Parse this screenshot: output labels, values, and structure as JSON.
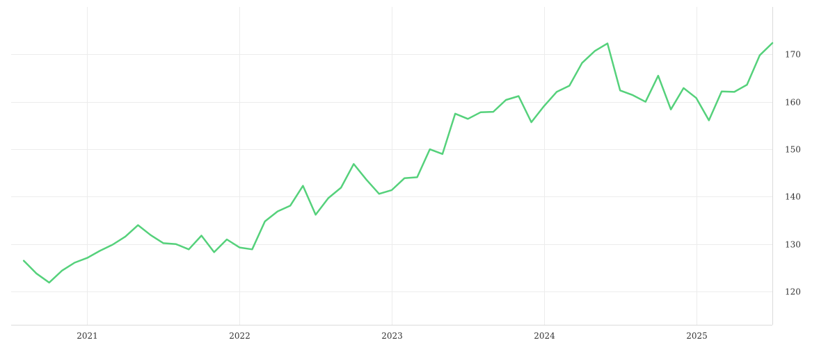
{
  "chart_data": {
    "type": "line",
    "title": "",
    "xlabel": "",
    "ylabel": "",
    "x_ticks": [
      "2021",
      "2022",
      "2023",
      "2024",
      "2025"
    ],
    "y_ticks": [
      120,
      130,
      140,
      150,
      160,
      170
    ],
    "xlim": [
      "2020-07",
      "2025-07"
    ],
    "ylim": [
      113,
      180
    ],
    "y_axis_side": "right",
    "grid": true,
    "legend": "none",
    "series": [
      {
        "color": "#55d17b",
        "points": [
          [
            "2020-08",
            126.5
          ],
          [
            "2020-09",
            123.8
          ],
          [
            "2020-10",
            121.9
          ],
          [
            "2020-11",
            124.4
          ],
          [
            "2020-12",
            126.1
          ],
          [
            "2021-01",
            127.1
          ],
          [
            "2021-02",
            128.6
          ],
          [
            "2021-03",
            129.9
          ],
          [
            "2021-04",
            131.6
          ],
          [
            "2021-05",
            134.0
          ],
          [
            "2021-06",
            131.9
          ],
          [
            "2021-07",
            130.2
          ],
          [
            "2021-08",
            130.0
          ],
          [
            "2021-09",
            128.9
          ],
          [
            "2021-10",
            131.8
          ],
          [
            "2021-11",
            128.3
          ],
          [
            "2021-12",
            131.0
          ],
          [
            "2022-01",
            129.3
          ],
          [
            "2022-02",
            128.9
          ],
          [
            "2022-03",
            134.8
          ],
          [
            "2022-04",
            136.9
          ],
          [
            "2022-05",
            138.1
          ],
          [
            "2022-06",
            142.3
          ],
          [
            "2022-07",
            136.2
          ],
          [
            "2022-08",
            139.7
          ],
          [
            "2022-09",
            141.9
          ],
          [
            "2022-10",
            146.9
          ],
          [
            "2022-11",
            143.6
          ],
          [
            "2022-12",
            140.6
          ],
          [
            "2023-01",
            141.4
          ],
          [
            "2023-02",
            143.9
          ],
          [
            "2023-03",
            144.1
          ],
          [
            "2023-04",
            150.0
          ],
          [
            "2023-05",
            149.0
          ],
          [
            "2023-06",
            157.5
          ],
          [
            "2023-07",
            156.4
          ],
          [
            "2023-08",
            157.8
          ],
          [
            "2023-09",
            157.9
          ],
          [
            "2023-10",
            160.4
          ],
          [
            "2023-11",
            161.2
          ],
          [
            "2023-12",
            155.7
          ],
          [
            "2024-01",
            159.1
          ],
          [
            "2024-02",
            162.1
          ],
          [
            "2024-03",
            163.4
          ],
          [
            "2024-04",
            168.2
          ],
          [
            "2024-05",
            170.7
          ],
          [
            "2024-06",
            172.3
          ],
          [
            "2024-07",
            162.4
          ],
          [
            "2024-08",
            161.4
          ],
          [
            "2024-09",
            160.0
          ],
          [
            "2024-10",
            165.5
          ],
          [
            "2024-11",
            158.4
          ],
          [
            "2024-12",
            162.9
          ],
          [
            "2025-01",
            160.8
          ],
          [
            "2025-02",
            156.1
          ],
          [
            "2025-03",
            162.2
          ],
          [
            "2025-04",
            162.1
          ],
          [
            "2025-05",
            163.6
          ],
          [
            "2025-06",
            169.8
          ],
          [
            "2025-07",
            172.4
          ]
        ]
      }
    ]
  }
}
